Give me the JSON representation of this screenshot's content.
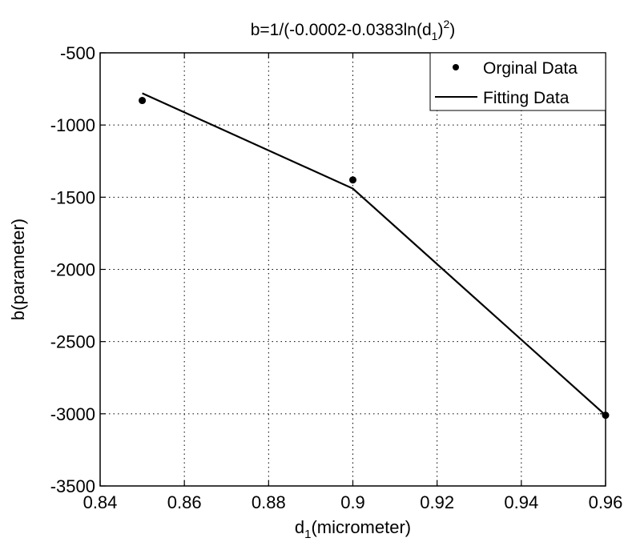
{
  "chart_data": {
    "type": "line",
    "title_main": "b=1/(-0.0002-0.0383ln(d",
    "title_sub": "1",
    "title_close": ")",
    "title_sup": "2",
    "title_end": ")",
    "xlabel_main": "d",
    "xlabel_sub": "1",
    "xlabel_rest": "(micrometer)",
    "ylabel": "b(parameter)",
    "xlim": [
      0.84,
      0.96
    ],
    "ylim": [
      -3500,
      -500
    ],
    "xticks": [
      0.84,
      0.86,
      0.88,
      0.9,
      0.92,
      0.94,
      0.96
    ],
    "xtick_labels": [
      "0.84",
      "0.86",
      "0.88",
      "0.9",
      "0.92",
      "0.94",
      "0.96"
    ],
    "yticks": [
      -3500,
      -3000,
      -2500,
      -2000,
      -1500,
      -1000,
      -500
    ],
    "ytick_labels": [
      "-3500",
      "-3000",
      "-2500",
      "-2000",
      "-1500",
      "-1000",
      "-500"
    ],
    "grid": true,
    "legend_position": "top-right",
    "series": [
      {
        "name": "Orginal Data",
        "style": "markers",
        "color": "#000000",
        "x": [
          0.85,
          0.9,
          0.96
        ],
        "y": [
          -830,
          -1380,
          -3010
        ]
      },
      {
        "name": "Fitting Data",
        "style": "line",
        "color": "#000000",
        "x": [
          0.85,
          0.9,
          0.96
        ],
        "y": [
          -780,
          -1440,
          -3010
        ]
      }
    ]
  }
}
